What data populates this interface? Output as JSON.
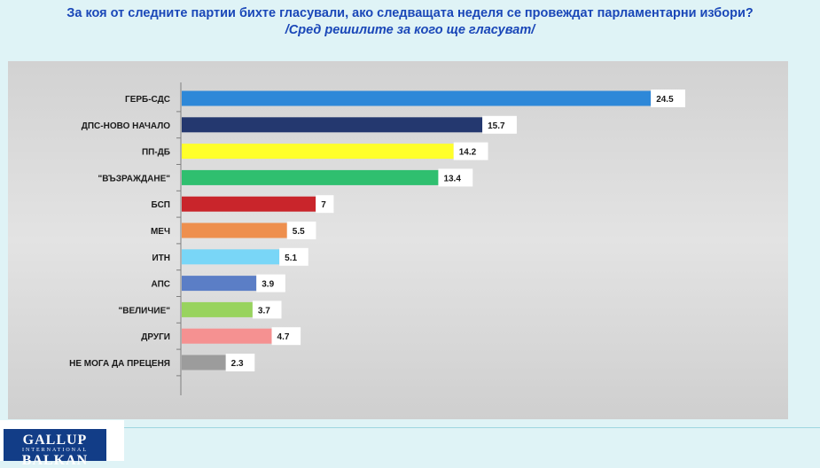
{
  "header": {
    "title": "За коя от следните партии бихте  гласували,  ако следващата неделя се провеждат парламентарни избори?",
    "subtitle": "/Сред решилите за кого ще гласуват/"
  },
  "logo": {
    "line1": "GALLUP",
    "line2": "INTERNATIONAL",
    "line3": "BALKAN"
  },
  "chart_data": {
    "type": "bar",
    "orientation": "horizontal",
    "categories": [
      "ГЕРБ-СДС",
      "ДПС-НОВО НАЧАЛО",
      "ПП-ДБ",
      "\"ВЪЗРАЖДАНЕ\"",
      "БСП",
      "МЕЧ",
      "ИТН",
      "АПС",
      "\"ВЕЛИЧИЕ\"",
      "ДРУГИ",
      "НЕ МОГА ДА ПРЕЦЕНЯ"
    ],
    "values": [
      24.5,
      15.7,
      14.2,
      13.4,
      7,
      5.5,
      5.1,
      3.9,
      3.7,
      4.7,
      2.3
    ],
    "value_labels": [
      "24.5",
      "15.7",
      "14.2",
      "13.4",
      "7",
      "5.5",
      "5.1",
      "3.9",
      "3.7",
      "4.7",
      "2.3"
    ],
    "colors": [
      "#2e88d8",
      "#24386f",
      "#ffff2a",
      "#2fbf6f",
      "#c9252b",
      "#ee8f4e",
      "#79d6f7",
      "#5b7ec6",
      "#98d35e",
      "#f59191",
      "#9c9c9c"
    ],
    "xlim": [
      0,
      30
    ],
    "grid": false,
    "legend": "none"
  }
}
